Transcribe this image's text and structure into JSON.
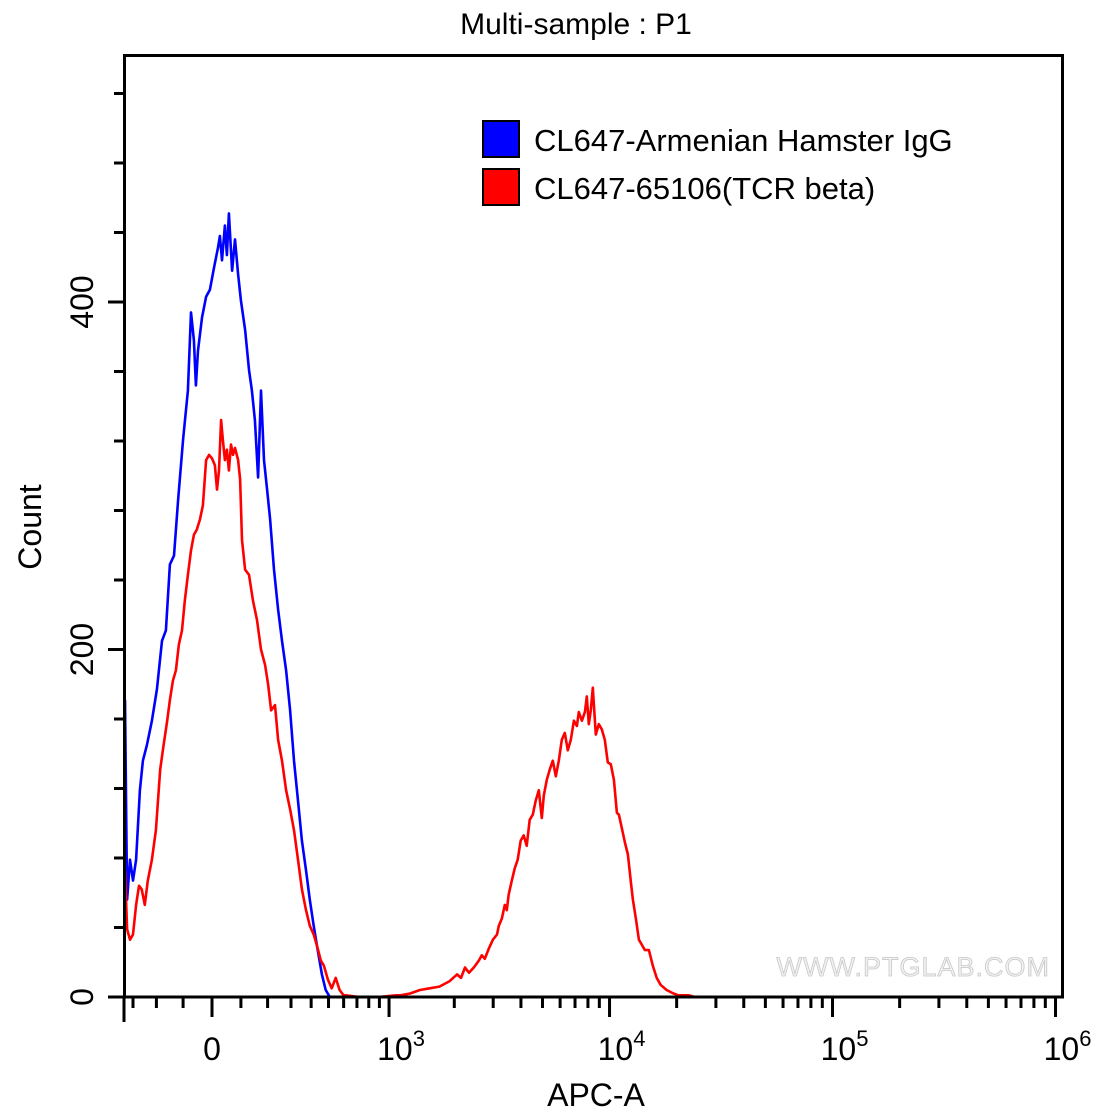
{
  "chart_data": {
    "type": "line",
    "title": "Multi-sample : P1",
    "xlabel": "APC-A",
    "ylabel": "Count",
    "x_scale": "biexponential",
    "xlim": [
      -340,
      1000000
    ],
    "ylim": [
      0,
      560
    ],
    "x_ticks": [
      {
        "value": 0,
        "label": "0",
        "sup": ""
      },
      {
        "value": 1000,
        "label": "10",
        "sup": "3"
      },
      {
        "value": 10000,
        "label": "10",
        "sup": "4"
      },
      {
        "value": 100000,
        "label": "10",
        "sup": "5"
      },
      {
        "value": 1000000,
        "label": "10",
        "sup": "6"
      }
    ],
    "x_minor_ticks": [
      -300,
      -200,
      -100,
      100,
      200,
      300,
      400,
      500,
      600,
      700,
      800,
      900,
      2000,
      3000,
      4000,
      5000,
      6000,
      7000,
      8000,
      9000,
      20000,
      30000,
      40000,
      50000,
      60000,
      70000,
      80000,
      90000,
      200000,
      300000,
      400000,
      500000,
      600000,
      700000,
      800000,
      900000
    ],
    "y_ticks": [
      {
        "value": 0,
        "label": "0"
      },
      {
        "value": 200,
        "label": "200"
      },
      {
        "value": 400,
        "label": "400"
      }
    ],
    "y_minor_ticks": [
      40,
      80,
      120,
      160,
      240,
      280,
      320,
      360,
      440,
      480,
      520
    ],
    "legend_position": "top-right",
    "watermark": "WWW.PTGLAB.COM",
    "series": [
      {
        "name": "CL647-Armenian Hamster IgG",
        "color": "#0000ff",
        "points": [
          [
            -338,
            171
          ],
          [
            -328,
            56
          ],
          [
            -314,
            79
          ],
          [
            -300,
            67
          ],
          [
            -286,
            79
          ],
          [
            -269,
            119
          ],
          [
            -256,
            136
          ],
          [
            -239,
            145
          ],
          [
            -218,
            159
          ],
          [
            -198,
            177
          ],
          [
            -178,
            205
          ],
          [
            -163,
            211
          ],
          [
            -148,
            249
          ],
          [
            -133,
            254
          ],
          [
            -118,
            286
          ],
          [
            -100,
            321
          ],
          [
            -83,
            349
          ],
          [
            -72,
            394
          ],
          [
            -62,
            378
          ],
          [
            -55,
            352
          ],
          [
            -48,
            372
          ],
          [
            -34,
            391
          ],
          [
            -20,
            403
          ],
          [
            -7,
            407
          ],
          [
            7,
            420
          ],
          [
            20,
            431
          ],
          [
            27,
            438
          ],
          [
            34,
            424
          ],
          [
            44,
            444
          ],
          [
            51,
            427
          ],
          [
            58,
            451
          ],
          [
            69,
            418
          ],
          [
            79,
            436
          ],
          [
            90,
            416
          ],
          [
            100,
            401
          ],
          [
            115,
            384
          ],
          [
            129,
            361
          ],
          [
            140,
            349
          ],
          [
            151,
            332
          ],
          [
            163,
            299
          ],
          [
            174,
            349
          ],
          [
            186,
            309
          ],
          [
            198,
            292
          ],
          [
            210,
            275
          ],
          [
            226,
            246
          ],
          [
            243,
            223
          ],
          [
            260,
            205
          ],
          [
            278,
            188
          ],
          [
            296,
            165
          ],
          [
            314,
            136
          ],
          [
            333,
            113
          ],
          [
            352,
            90
          ],
          [
            373,
            73
          ],
          [
            393,
            56
          ],
          [
            414,
            41
          ],
          [
            436,
            27
          ],
          [
            460,
            13
          ],
          [
            483,
            4
          ],
          [
            508,
            0
          ]
        ]
      },
      {
        "name": "CL647-65106(TCR beta)",
        "color": "#ff0000",
        "points": [
          [
            -338,
            73
          ],
          [
            -328,
            39
          ],
          [
            -314,
            33
          ],
          [
            -300,
            36
          ],
          [
            -286,
            53
          ],
          [
            -273,
            64
          ],
          [
            -261,
            62
          ],
          [
            -248,
            53
          ],
          [
            -235,
            67
          ],
          [
            -218,
            79
          ],
          [
            -202,
            96
          ],
          [
            -185,
            131
          ],
          [
            -172,
            145
          ],
          [
            -158,
            159
          ],
          [
            -148,
            171
          ],
          [
            -137,
            182
          ],
          [
            -126,
            188
          ],
          [
            -115,
            203
          ],
          [
            -104,
            211
          ],
          [
            -94,
            228
          ],
          [
            -83,
            243
          ],
          [
            -72,
            257
          ],
          [
            -62,
            266
          ],
          [
            -52,
            269
          ],
          [
            -41,
            275
          ],
          [
            -31,
            283
          ],
          [
            -20,
            309
          ],
          [
            -10,
            312
          ],
          [
            0,
            310
          ],
          [
            10,
            306
          ],
          [
            17,
            292
          ],
          [
            24,
            303
          ],
          [
            31,
            332
          ],
          [
            37,
            321
          ],
          [
            44,
            309
          ],
          [
            51,
            315
          ],
          [
            58,
            303
          ],
          [
            65,
            318
          ],
          [
            72,
            312
          ],
          [
            79,
            316
          ],
          [
            90,
            309
          ],
          [
            97,
            298
          ],
          [
            104,
            263
          ],
          [
            115,
            246
          ],
          [
            129,
            243
          ],
          [
            144,
            228
          ],
          [
            159,
            217
          ],
          [
            174,
            200
          ],
          [
            190,
            191
          ],
          [
            202,
            180
          ],
          [
            214,
            165
          ],
          [
            230,
            168
          ],
          [
            243,
            148
          ],
          [
            260,
            136
          ],
          [
            278,
            119
          ],
          [
            296,
            108
          ],
          [
            314,
            96
          ],
          [
            333,
            79
          ],
          [
            352,
            62
          ],
          [
            373,
            50
          ],
          [
            393,
            41
          ],
          [
            414,
            36
          ],
          [
            436,
            28
          ],
          [
            454,
            21
          ],
          [
            472,
            18
          ],
          [
            496,
            10
          ],
          [
            520,
            5
          ],
          [
            546,
            11
          ],
          [
            572,
            4
          ],
          [
            600,
            1
          ],
          [
            614,
            1
          ],
          [
            720,
            0
          ],
          [
            900,
            0
          ],
          [
            1075,
            1
          ],
          [
            1132,
            1
          ],
          [
            1255,
            2
          ],
          [
            1392,
            4
          ],
          [
            1543,
            5
          ],
          [
            1711,
            6
          ],
          [
            1898,
            9
          ],
          [
            2058,
            13
          ],
          [
            2146,
            11
          ],
          [
            2238,
            17
          ],
          [
            2333,
            14
          ],
          [
            2452,
            17
          ],
          [
            2585,
            21
          ],
          [
            2666,
            24
          ],
          [
            2750,
            22
          ],
          [
            2868,
            28
          ],
          [
            2992,
            33
          ],
          [
            3121,
            36
          ],
          [
            3181,
            41
          ],
          [
            3281,
            45
          ],
          [
            3384,
            53
          ],
          [
            3455,
            50
          ],
          [
            3525,
            59
          ],
          [
            3637,
            67
          ],
          [
            3751,
            74
          ],
          [
            3870,
            79
          ],
          [
            3992,
            90
          ],
          [
            4118,
            93
          ],
          [
            4248,
            87
          ],
          [
            4382,
            102
          ],
          [
            4521,
            105
          ],
          [
            4663,
            113
          ],
          [
            4811,
            119
          ],
          [
            4963,
            103
          ],
          [
            5066,
            116
          ],
          [
            5227,
            125
          ],
          [
            5392,
            131
          ],
          [
            5563,
            136
          ],
          [
            5738,
            127
          ],
          [
            5920,
            136
          ],
          [
            6107,
            148
          ],
          [
            6300,
            152
          ],
          [
            6498,
            142
          ],
          [
            6704,
            148
          ],
          [
            6916,
            159
          ],
          [
            7134,
            156
          ],
          [
            7282,
            164
          ],
          [
            7512,
            159
          ],
          [
            7750,
            164
          ],
          [
            7909,
            173
          ],
          [
            8073,
            157
          ],
          [
            8240,
            165
          ],
          [
            8411,
            178
          ],
          [
            8676,
            151
          ],
          [
            8950,
            157
          ],
          [
            9234,
            154
          ],
          [
            9525,
            148
          ],
          [
            9825,
            135
          ],
          [
            10136,
            134
          ],
          [
            10456,
            125
          ],
          [
            10786,
            106
          ],
          [
            11010,
            105
          ],
          [
            11358,
            97
          ],
          [
            11717,
            89
          ],
          [
            12086,
            82
          ],
          [
            12469,
            66
          ],
          [
            12727,
            56
          ],
          [
            13129,
            45
          ],
          [
            13544,
            33
          ],
          [
            13971,
            30
          ],
          [
            14413,
            27
          ],
          [
            15010,
            27
          ],
          [
            15630,
            18
          ],
          [
            16278,
            11
          ],
          [
            16951,
            7
          ],
          [
            18020,
            4
          ],
          [
            19359,
            2
          ],
          [
            20397,
            1
          ],
          [
            22640,
            1
          ],
          [
            24080,
            0
          ]
        ]
      }
    ]
  }
}
